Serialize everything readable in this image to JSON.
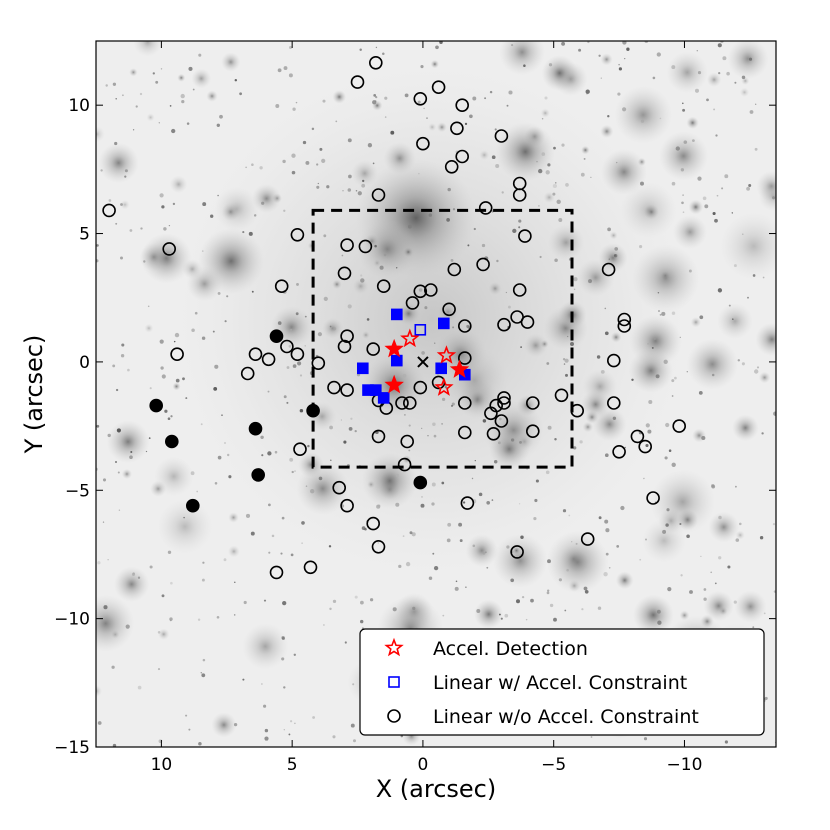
{
  "chart_data": {
    "type": "scatter",
    "title": "",
    "xlabel": "X (arcsec)",
    "ylabel": "Y (arcsec)",
    "xlim": [
      12.5,
      -13.5
    ],
    "ylim": [
      -15,
      12.5
    ],
    "x_inverted": true,
    "background": "grayscale sky image of the stellar cluster",
    "grid": false,
    "xticks": [
      10,
      5,
      0,
      -5,
      -10
    ],
    "yticks": [
      10,
      5,
      0,
      -5,
      -10,
      -15
    ],
    "xtick_labels": [
      "10",
      "5",
      "0",
      "−5",
      "−10"
    ],
    "ytick_labels": [
      "10",
      "5",
      "0",
      "−5",
      "−10",
      "−15"
    ],
    "legend_position": "lower right",
    "legend": [
      {
        "label": "Accel. Detection",
        "marker": "star-open",
        "color": "#ff0000"
      },
      {
        "label": "Linear w/ Accel. Constraint",
        "marker": "square-open",
        "color": "#0000ff"
      },
      {
        "label": "Linear w/o Accel. Constraint",
        "marker": "circle-open",
        "color": "#000000"
      }
    ],
    "box": {
      "x0": 4.2,
      "x1": -5.7,
      "y0": -4.1,
      "y1": 5.9,
      "style": "dashed"
    },
    "center_marker": {
      "x": 0.0,
      "y": 0.0,
      "marker": "x"
    },
    "series": [
      {
        "name": "Accel. Detection",
        "marker": "star",
        "color": "#ff0000",
        "points": [
          {
            "x": 0.5,
            "y": 0.9,
            "filled": false
          },
          {
            "x": 1.1,
            "y": 0.5,
            "filled": true
          },
          {
            "x": 1.1,
            "y": -0.9,
            "filled": true
          },
          {
            "x": -0.9,
            "y": 0.25,
            "filled": false
          },
          {
            "x": -1.4,
            "y": -0.3,
            "filled": true
          },
          {
            "x": -0.8,
            "y": -1.0,
            "filled": false
          }
        ]
      },
      {
        "name": "Linear w/ Accel. Constraint",
        "marker": "square",
        "color": "#0000ff",
        "points": [
          {
            "x": 1.0,
            "y": 1.85,
            "filled": true
          },
          {
            "x": 0.1,
            "y": 1.25,
            "filled": false
          },
          {
            "x": -0.8,
            "y": 1.5,
            "filled": true
          },
          {
            "x": 1.0,
            "y": 0.05,
            "filled": true
          },
          {
            "x": 2.3,
            "y": -0.25,
            "filled": true
          },
          {
            "x": -0.7,
            "y": -0.25,
            "filled": true
          },
          {
            "x": -1.6,
            "y": -0.5,
            "filled": true
          },
          {
            "x": 2.1,
            "y": -1.1,
            "filled": true
          },
          {
            "x": 1.8,
            "y": -1.1,
            "filled": true
          },
          {
            "x": 1.5,
            "y": -1.4,
            "filled": true
          }
        ]
      },
      {
        "name": "Linear w/o Accel. Constraint",
        "marker": "circle",
        "color": "#000000",
        "points": [
          {
            "x": 1.8,
            "y": 11.65,
            "filled": false
          },
          {
            "x": 2.5,
            "y": 10.9,
            "filled": false
          },
          {
            "x": -0.6,
            "y": 10.7,
            "filled": false
          },
          {
            "x": 0.1,
            "y": 10.25,
            "filled": false
          },
          {
            "x": -1.5,
            "y": 10.0,
            "filled": false
          },
          {
            "x": -1.3,
            "y": 9.1,
            "filled": false
          },
          {
            "x": -3.0,
            "y": 8.8,
            "filled": false
          },
          {
            "x": 0.0,
            "y": 8.5,
            "filled": false
          },
          {
            "x": -1.5,
            "y": 8.0,
            "filled": false
          },
          {
            "x": -1.1,
            "y": 7.6,
            "filled": false
          },
          {
            "x": -3.7,
            "y": 6.95,
            "filled": false
          },
          {
            "x": 1.7,
            "y": 6.5,
            "filled": false
          },
          {
            "x": -3.7,
            "y": 6.5,
            "filled": false
          },
          {
            "x": 12.0,
            "y": 5.9,
            "filled": false
          },
          {
            "x": -2.4,
            "y": 6.0,
            "filled": false
          },
          {
            "x": 4.8,
            "y": 4.95,
            "filled": false
          },
          {
            "x": -3.9,
            "y": 4.9,
            "filled": false
          },
          {
            "x": 2.9,
            "y": 4.55,
            "filled": false
          },
          {
            "x": 2.2,
            "y": 4.5,
            "filled": false
          },
          {
            "x": 9.7,
            "y": 4.4,
            "filled": false
          },
          {
            "x": -2.3,
            "y": 3.8,
            "filled": false
          },
          {
            "x": -1.2,
            "y": 3.6,
            "filled": false
          },
          {
            "x": -7.1,
            "y": 3.6,
            "filled": false
          },
          {
            "x": 3.0,
            "y": 3.45,
            "filled": false
          },
          {
            "x": 1.5,
            "y": 2.95,
            "filled": false
          },
          {
            "x": 5.4,
            "y": 2.95,
            "filled": false
          },
          {
            "x": -3.7,
            "y": 2.8,
            "filled": false
          },
          {
            "x": 0.1,
            "y": 2.75,
            "filled": false
          },
          {
            "x": -0.3,
            "y": 2.8,
            "filled": false
          },
          {
            "x": 0.4,
            "y": 2.3,
            "filled": false
          },
          {
            "x": -1.0,
            "y": 2.05,
            "filled": false
          },
          {
            "x": -3.6,
            "y": 1.75,
            "filled": false
          },
          {
            "x": -7.7,
            "y": 1.65,
            "filled": false
          },
          {
            "x": -1.6,
            "y": 1.4,
            "filled": false
          },
          {
            "x": -3.1,
            "y": 1.45,
            "filled": false
          },
          {
            "x": -4.0,
            "y": 1.55,
            "filled": false
          },
          {
            "x": -7.7,
            "y": 1.4,
            "filled": false
          },
          {
            "x": 2.9,
            "y": 1.0,
            "filled": false
          },
          {
            "x": 5.2,
            "y": 0.6,
            "filled": false
          },
          {
            "x": 9.4,
            "y": 0.3,
            "filled": false
          },
          {
            "x": 6.4,
            "y": 0.3,
            "filled": false
          },
          {
            "x": 4.8,
            "y": 0.3,
            "filled": false
          },
          {
            "x": 5.9,
            "y": 0.1,
            "filled": false
          },
          {
            "x": 3.0,
            "y": 0.6,
            "filled": false
          },
          {
            "x": 1.9,
            "y": 0.5,
            "filled": false
          },
          {
            "x": -7.3,
            "y": 0.05,
            "filled": false
          },
          {
            "x": 4.0,
            "y": -0.05,
            "filled": false
          },
          {
            "x": -1.6,
            "y": 0.15,
            "filled": false
          },
          {
            "x": 6.7,
            "y": -0.45,
            "filled": false
          },
          {
            "x": -0.6,
            "y": -0.8,
            "filled": false
          },
          {
            "x": 3.4,
            "y": -1.0,
            "filled": false
          },
          {
            "x": 2.9,
            "y": -1.1,
            "filled": false
          },
          {
            "x": 0.1,
            "y": -1.0,
            "filled": false
          },
          {
            "x": 0.8,
            "y": -1.6,
            "filled": false
          },
          {
            "x": 0.5,
            "y": -1.6,
            "filled": false
          },
          {
            "x": 1.7,
            "y": -1.5,
            "filled": false
          },
          {
            "x": 1.4,
            "y": -1.8,
            "filled": false
          },
          {
            "x": -1.6,
            "y": -1.6,
            "filled": false
          },
          {
            "x": -3.1,
            "y": -1.4,
            "filled": false
          },
          {
            "x": -3.1,
            "y": -1.6,
            "filled": false
          },
          {
            "x": -2.8,
            "y": -1.7,
            "filled": false
          },
          {
            "x": -4.2,
            "y": -1.6,
            "filled": false
          },
          {
            "x": -5.3,
            "y": -1.3,
            "filled": false
          },
          {
            "x": -5.9,
            "y": -1.9,
            "filled": false
          },
          {
            "x": -7.3,
            "y": -1.6,
            "filled": false
          },
          {
            "x": -2.6,
            "y": -2.0,
            "filled": false
          },
          {
            "x": -3.0,
            "y": -2.3,
            "filled": false
          },
          {
            "x": -2.7,
            "y": -2.8,
            "filled": false
          },
          {
            "x": -4.2,
            "y": -2.7,
            "filled": false
          },
          {
            "x": -1.6,
            "y": -2.75,
            "filled": false
          },
          {
            "x": -9.8,
            "y": -2.5,
            "filled": false
          },
          {
            "x": -8.2,
            "y": -2.9,
            "filled": false
          },
          {
            "x": 1.7,
            "y": -2.9,
            "filled": false
          },
          {
            "x": 0.6,
            "y": -3.1,
            "filled": false
          },
          {
            "x": -8.5,
            "y": -3.3,
            "filled": false
          },
          {
            "x": -7.5,
            "y": -3.5,
            "filled": false
          },
          {
            "x": 4.7,
            "y": -3.4,
            "filled": false
          },
          {
            "x": 0.7,
            "y": -4.0,
            "filled": false
          },
          {
            "x": 3.2,
            "y": -4.9,
            "filled": false
          },
          {
            "x": -8.8,
            "y": -5.3,
            "filled": false
          },
          {
            "x": 2.9,
            "y": -5.6,
            "filled": false
          },
          {
            "x": -1.7,
            "y": -5.5,
            "filled": false
          },
          {
            "x": 1.9,
            "y": -6.3,
            "filled": false
          },
          {
            "x": -6.3,
            "y": -6.9,
            "filled": false
          },
          {
            "x": 1.7,
            "y": -7.2,
            "filled": false
          },
          {
            "x": -3.6,
            "y": -7.4,
            "filled": false
          },
          {
            "x": 4.3,
            "y": -8.0,
            "filled": false
          },
          {
            "x": 5.6,
            "y": -8.2,
            "filled": false
          },
          {
            "x": 5.6,
            "y": 1.0,
            "filled": true
          },
          {
            "x": 10.2,
            "y": -1.7,
            "filled": true
          },
          {
            "x": 4.2,
            "y": -1.9,
            "filled": true
          },
          {
            "x": 6.4,
            "y": -2.6,
            "filled": true
          },
          {
            "x": 9.6,
            "y": -3.1,
            "filled": true
          },
          {
            "x": 6.3,
            "y": -4.4,
            "filled": true
          },
          {
            "x": 0.1,
            "y": -4.7,
            "filled": true
          },
          {
            "x": 8.8,
            "y": -5.6,
            "filled": true
          }
        ]
      }
    ]
  }
}
